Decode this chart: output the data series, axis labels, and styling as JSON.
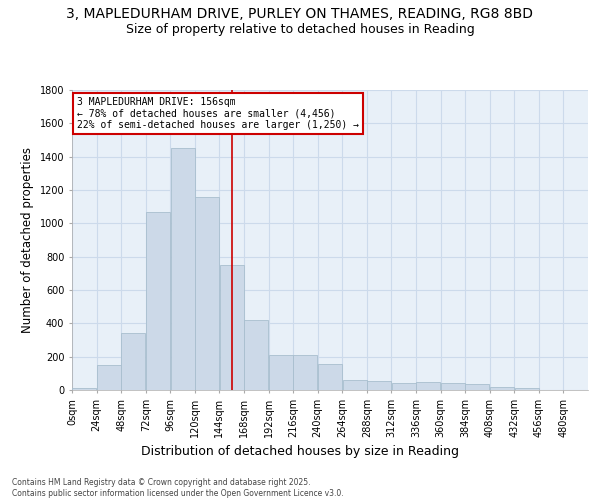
{
  "title_line1": "3, MAPLEDURHAM DRIVE, PURLEY ON THAMES, READING, RG8 8BD",
  "title_line2": "Size of property relative to detached houses in Reading",
  "xlabel": "Distribution of detached houses by size in Reading",
  "ylabel": "Number of detached properties",
  "bin_labels": [
    "0sqm",
    "24sqm",
    "48sqm",
    "72sqm",
    "96sqm",
    "120sqm",
    "144sqm",
    "168sqm",
    "192sqm",
    "216sqm",
    "240sqm",
    "264sqm",
    "288sqm",
    "312sqm",
    "336sqm",
    "360sqm",
    "384sqm",
    "408sqm",
    "432sqm",
    "456sqm",
    "480sqm"
  ],
  "bar_values": [
    10,
    150,
    340,
    1070,
    1450,
    1160,
    750,
    420,
    210,
    210,
    155,
    60,
    55,
    45,
    50,
    45,
    35,
    20,
    10,
    0,
    0
  ],
  "bar_color": "#ccd9e8",
  "bar_edge_color": "#a8bece",
  "property_size": 156,
  "annotation_text": "3 MAPLEDURHAM DRIVE: 156sqm\n← 78% of detached houses are smaller (4,456)\n22% of semi-detached houses are larger (1,250) →",
  "annotation_box_color": "#ffffff",
  "annotation_border_color": "#cc0000",
  "vline_color": "#cc0000",
  "ylim": [
    0,
    1800
  ],
  "xlim_start": 0,
  "xlim_end": 504,
  "bin_width": 24,
  "grid_color": "#ccdaeb",
  "background_color": "#e8f0f8",
  "footer_text": "Contains HM Land Registry data © Crown copyright and database right 2025.\nContains public sector information licensed under the Open Government Licence v3.0.",
  "title_fontsize": 10,
  "subtitle_fontsize": 9,
  "tick_fontsize": 7,
  "ylabel_fontsize": 8.5,
  "xlabel_fontsize": 9
}
